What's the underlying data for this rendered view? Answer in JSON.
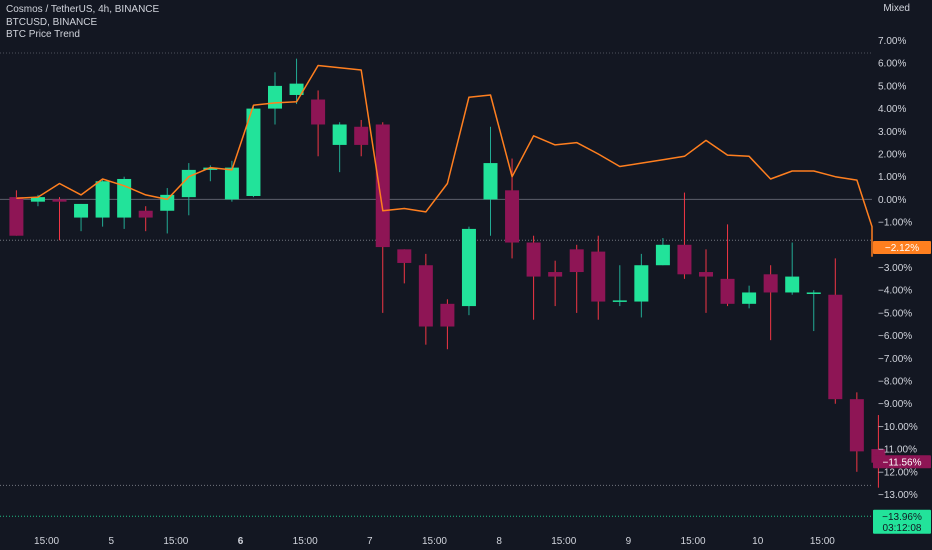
{
  "legend": {
    "main_series": "Cosmos / TetherUS, 4h, BINANCE",
    "overlay_series": "BTCUSD, BINANCE",
    "indicator": "BTC Price Trend"
  },
  "scale_mode": "Mixed",
  "colors": {
    "background": "#131722",
    "up": "#22e39a",
    "down": "#8e1555",
    "wick_up": "#22ab94",
    "wick_down": "#f23645",
    "btc_line": "#ff7f1f",
    "zero_line": "#5d606b",
    "text": "#d1d4dc"
  },
  "chart_data": {
    "type": "candlestick",
    "y_unit": "%",
    "ylim": [
      -13.96,
      7.64
    ],
    "yticks": [
      7,
      6,
      5,
      4,
      3,
      2,
      1,
      0,
      -1,
      -2,
      -3,
      -4,
      -5,
      -6,
      -7,
      -8,
      -9,
      -10,
      -11,
      -12,
      -13
    ],
    "ytick_labels": [
      "7.00%",
      "6.00%",
      "5.00%",
      "4.00%",
      "3.00%",
      "2.00%",
      "1.00%",
      "0.00%",
      "−1.00%",
      "−2.00%",
      "−3.00%",
      "−4.00%",
      "−5.00%",
      "−6.00%",
      "−7.00%",
      "−8.00%",
      "−9.00%",
      "−10.00%",
      "−11.00%",
      "−12.00%",
      "−13.00%"
    ],
    "xticks": [
      {
        "index": 1.4,
        "label": "15:00",
        "bold": false
      },
      {
        "index": 4.4,
        "label": "5",
        "bold": false
      },
      {
        "index": 7.4,
        "label": "15:00",
        "bold": false
      },
      {
        "index": 10.4,
        "label": "6",
        "bold": true
      },
      {
        "index": 13.4,
        "label": "15:00",
        "bold": false
      },
      {
        "index": 16.4,
        "label": "7",
        "bold": false
      },
      {
        "index": 19.4,
        "label": "15:00",
        "bold": false
      },
      {
        "index": 22.4,
        "label": "8",
        "bold": false
      },
      {
        "index": 25.4,
        "label": "15:00",
        "bold": false
      },
      {
        "index": 28.4,
        "label": "9",
        "bold": false
      },
      {
        "index": 31.4,
        "label": "15:00",
        "bold": false
      },
      {
        "index": 34.4,
        "label": "10",
        "bold": false
      },
      {
        "index": 37.4,
        "label": "15:00",
        "bold": false
      }
    ],
    "series": [
      {
        "name": "Cosmos / TetherUS",
        "candles": [
          {
            "o": 0.1,
            "h": 0.4,
            "l": -1.5,
            "c": -1.6
          },
          {
            "o": -0.1,
            "h": 0.2,
            "l": -0.3,
            "c": 0.1
          },
          {
            "o": 0.0,
            "h": 0.1,
            "l": -1.8,
            "c": -0.1
          },
          {
            "o": -0.8,
            "h": -0.2,
            "l": -1.4,
            "c": -0.2
          },
          {
            "o": -0.8,
            "h": 0.9,
            "l": -1.2,
            "c": 0.8
          },
          {
            "o": -0.8,
            "h": 1.0,
            "l": -1.3,
            "c": 0.9
          },
          {
            "o": -0.5,
            "h": -0.3,
            "l": -1.4,
            "c": -0.8
          },
          {
            "o": -0.5,
            "h": 0.5,
            "l": -1.5,
            "c": 0.2
          },
          {
            "o": 0.1,
            "h": 1.6,
            "l": -0.7,
            "c": 1.3
          },
          {
            "o": 1.3,
            "h": 1.5,
            "l": 0.8,
            "c": 1.4
          },
          {
            "o": 0.0,
            "h": 1.7,
            "l": -0.1,
            "c": 1.4
          },
          {
            "o": 0.15,
            "h": 4.1,
            "l": 0.1,
            "c": 4.0
          },
          {
            "o": 4.0,
            "h": 5.6,
            "l": 3.3,
            "c": 5.0
          },
          {
            "o": 4.6,
            "h": 6.2,
            "l": 4.2,
            "c": 5.1
          },
          {
            "o": 4.4,
            "h": 4.8,
            "l": 1.9,
            "c": 3.3
          },
          {
            "o": 2.4,
            "h": 3.4,
            "l": 1.2,
            "c": 3.3
          },
          {
            "o": 3.2,
            "h": 3.5,
            "l": 1.9,
            "c": 2.4
          },
          {
            "o": 3.3,
            "h": 3.4,
            "l": -5.0,
            "c": -2.1
          },
          {
            "o": -2.2,
            "h": -2.3,
            "l": -3.7,
            "c": -2.8
          },
          {
            "o": -2.9,
            "h": -2.4,
            "l": -6.4,
            "c": -5.6
          },
          {
            "o": -4.6,
            "h": -4.4,
            "l": -6.6,
            "c": -5.6
          },
          {
            "o": -4.7,
            "h": -1.2,
            "l": -5.1,
            "c": -1.3
          },
          {
            "o": 0.0,
            "h": 3.2,
            "l": -1.6,
            "c": 1.6
          },
          {
            "o": 0.4,
            "h": 1.8,
            "l": -2.6,
            "c": -1.9
          },
          {
            "o": -1.9,
            "h": -1.6,
            "l": -5.3,
            "c": -3.4
          },
          {
            "o": -3.2,
            "h": -2.7,
            "l": -4.7,
            "c": -3.4
          },
          {
            "o": -2.2,
            "h": -2.0,
            "l": -5.0,
            "c": -3.2
          },
          {
            "o": -2.3,
            "h": -1.6,
            "l": -5.3,
            "c": -4.5
          },
          {
            "o": -4.45,
            "h": -2.9,
            "l": -4.7,
            "c": -4.45
          },
          {
            "o": -4.5,
            "h": -2.4,
            "l": -5.2,
            "c": -2.9
          },
          {
            "o": -2.9,
            "h": -1.7,
            "l": -2.9,
            "c": -2.0
          },
          {
            "o": -2.0,
            "h": 0.3,
            "l": -3.5,
            "c": -3.3
          },
          {
            "o": -3.2,
            "h": -2.2,
            "l": -5.0,
            "c": -3.4
          },
          {
            "o": -3.5,
            "h": -1.1,
            "l": -4.7,
            "c": -4.6
          },
          {
            "o": -4.6,
            "h": -3.8,
            "l": -4.8,
            "c": -4.1
          },
          {
            "o": -3.3,
            "h": -2.9,
            "l": -6.2,
            "c": -4.1
          },
          {
            "o": -4.1,
            "h": -1.9,
            "l": -4.2,
            "c": -3.4
          },
          {
            "o": -4.1,
            "h": -4.0,
            "l": -5.8,
            "c": -4.1
          },
          {
            "o": -4.2,
            "h": -2.6,
            "l": -9.0,
            "c": -8.8
          },
          {
            "o": -8.8,
            "h": -8.5,
            "l": -12.0,
            "c": -11.1
          },
          {
            "o": -11.0,
            "h": -9.5,
            "l": -12.7,
            "c": -11.6
          }
        ]
      },
      {
        "name": "BTCUSD",
        "values": [
          0.05,
          0.1,
          0.7,
          0.2,
          0.9,
          0.6,
          0.2,
          0.0,
          1.0,
          1.4,
          1.3,
          4.15,
          4.25,
          4.3,
          5.9,
          5.8,
          5.7,
          -0.5,
          -0.4,
          -0.55,
          0.7,
          4.5,
          4.6,
          1.0,
          2.8,
          2.4,
          2.5,
          2.0,
          1.45,
          1.6,
          1.75,
          1.9,
          2.6,
          1.95,
          1.9,
          0.9,
          1.25,
          1.25,
          1.0,
          0.85,
          -1.2,
          -2.5,
          -2.12,
          -1.9
        ]
      }
    ],
    "price_badges": [
      {
        "value": -2.12,
        "label": "−2.12%",
        "color": "#ff7f1f"
      },
      {
        "value": -11.56,
        "label": "−11.56%",
        "color": "#8e1555"
      },
      {
        "value": -13.96,
        "label": "−13.96%",
        "sublabel": "03:12:08",
        "color": "#22e39a"
      }
    ],
    "dotted_lines": [
      {
        "value": 6.45,
        "color": "#5d606b"
      },
      {
        "value": -1.8,
        "color": "#8a8d96"
      },
      {
        "value": -12.6,
        "color": "#8a8d96"
      },
      {
        "value": -13.96,
        "color": "#22e39a"
      }
    ]
  }
}
